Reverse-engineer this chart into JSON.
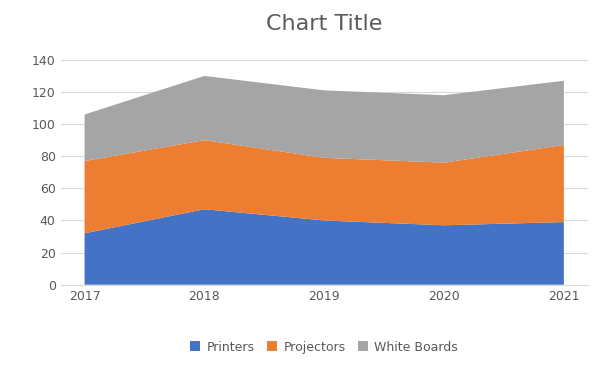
{
  "x": [
    2017,
    2018,
    2019,
    2020,
    2021
  ],
  "printers": [
    32,
    47,
    40,
    37,
    39
  ],
  "projectors": [
    45,
    43,
    39,
    39,
    48
  ],
  "whiteboards": [
    29,
    40,
    42,
    42,
    40
  ],
  "title": "Chart Title",
  "title_fontsize": 16,
  "title_color": "#595959",
  "color_printers": "#4472C4",
  "color_projectors": "#ED7D31",
  "color_whiteboards": "#A5A5A5",
  "ylim": [
    0,
    150
  ],
  "yticks": [
    0,
    20,
    40,
    60,
    80,
    100,
    120,
    140
  ],
  "legend_labels": [
    "Printers",
    "Projectors",
    "White Boards"
  ],
  "bg_color": "#FFFFFF",
  "grid_color": "#D9D9D9",
  "tick_fontsize": 9,
  "legend_fontsize": 9
}
